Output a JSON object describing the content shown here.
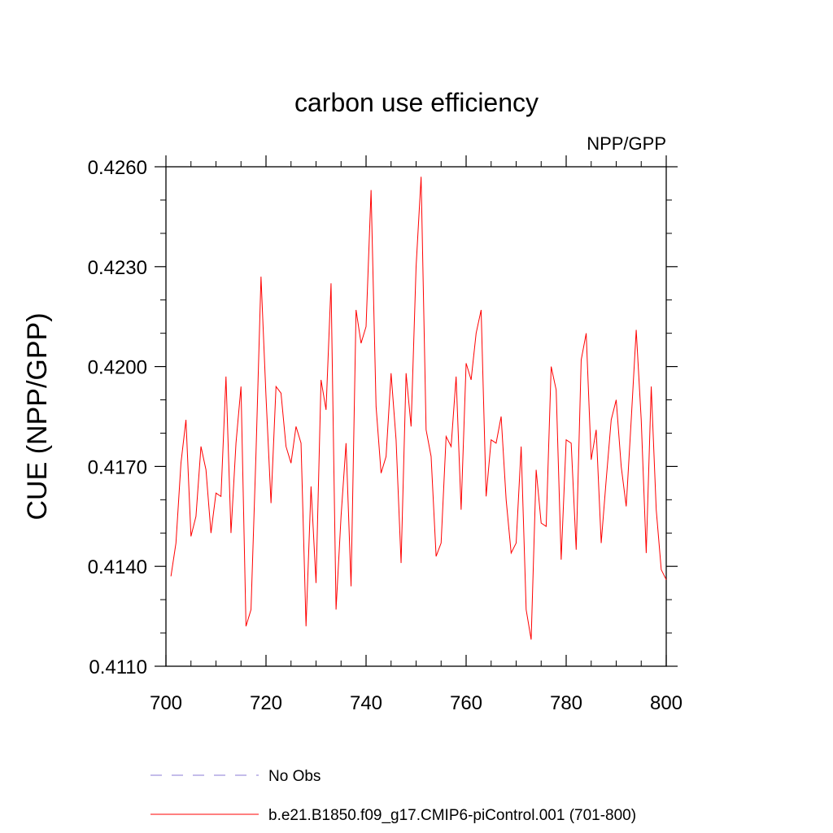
{
  "chart_data": {
    "type": "line",
    "title": "carbon use efficiency",
    "subtitle_right": "NPP/GPP",
    "xlabel": "",
    "ylabel": "CUE  (NPP/GPP)",
    "xlim": [
      700,
      800
    ],
    "ylim": [
      0.411,
      0.426
    ],
    "x_ticks": [
      "700",
      "720",
      "740",
      "760",
      "780",
      "800"
    ],
    "y_ticks": [
      "0.4110",
      "0.4140",
      "0.4170",
      "0.4200",
      "0.4230",
      "0.4260"
    ],
    "grid": false,
    "legend_position": "bottom",
    "series": [
      {
        "name": "No Obs",
        "color": "#8a7ad6",
        "style": "dashed",
        "x": [],
        "values": []
      },
      {
        "name": "b.e21.B1850.f09_g17.CMIP6-piControl.001 (701-800)",
        "color": "#ff0000",
        "style": "solid",
        "x": [
          701,
          702,
          703,
          704,
          705,
          706,
          707,
          708,
          709,
          710,
          711,
          712,
          713,
          714,
          715,
          716,
          717,
          718,
          719,
          720,
          721,
          722,
          723,
          724,
          725,
          726,
          727,
          728,
          729,
          730,
          731,
          732,
          733,
          734,
          735,
          736,
          737,
          738,
          739,
          740,
          741,
          742,
          743,
          744,
          745,
          746,
          747,
          748,
          749,
          750,
          751,
          752,
          753,
          754,
          755,
          756,
          757,
          758,
          759,
          760,
          761,
          762,
          763,
          764,
          765,
          766,
          767,
          768,
          769,
          770,
          771,
          772,
          773,
          774,
          775,
          776,
          777,
          778,
          779,
          780,
          781,
          782,
          783,
          784,
          785,
          786,
          787,
          788,
          789,
          790,
          791,
          792,
          793,
          794,
          795,
          796,
          797,
          798,
          799,
          800
        ],
        "values": [
          0.4137,
          0.4147,
          0.4171,
          0.4184,
          0.4149,
          0.4155,
          0.4176,
          0.4169,
          0.415,
          0.4162,
          0.4161,
          0.4197,
          0.415,
          0.4177,
          0.4194,
          0.4122,
          0.4127,
          0.4174,
          0.4227,
          0.4191,
          0.4159,
          0.4194,
          0.4192,
          0.4176,
          0.4171,
          0.4182,
          0.4177,
          0.4122,
          0.4164,
          0.4135,
          0.4196,
          0.4187,
          0.4225,
          0.4127,
          0.4155,
          0.4177,
          0.4134,
          0.4217,
          0.4207,
          0.4212,
          0.4253,
          0.4188,
          0.4168,
          0.4173,
          0.4198,
          0.4178,
          0.4141,
          0.4198,
          0.4182,
          0.423,
          0.4257,
          0.4181,
          0.4173,
          0.4143,
          0.4147,
          0.4179,
          0.4176,
          0.4197,
          0.4157,
          0.4201,
          0.4196,
          0.421,
          0.4217,
          0.4161,
          0.4178,
          0.4177,
          0.4185,
          0.416,
          0.4144,
          0.4147,
          0.4176,
          0.4127,
          0.4118,
          0.4169,
          0.4153,
          0.4152,
          0.42,
          0.4193,
          0.4142,
          0.4178,
          0.4177,
          0.4145,
          0.4202,
          0.421,
          0.4172,
          0.4181,
          0.4147,
          0.4166,
          0.4184,
          0.419,
          0.417,
          0.4158,
          0.4184,
          0.4211,
          0.4184,
          0.4144,
          0.4194,
          0.4157,
          0.4139,
          0.4136
        ]
      }
    ]
  }
}
